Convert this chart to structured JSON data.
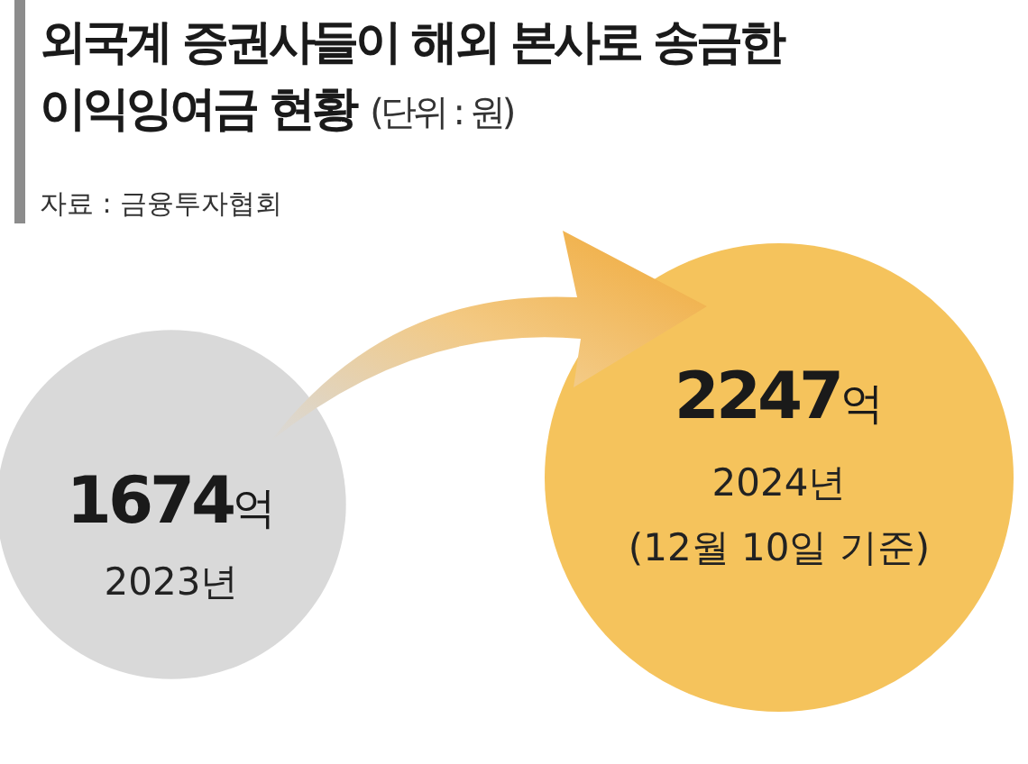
{
  "chart_data": {
    "type": "other",
    "title": "외국계 증권사들이 해외 본사로 송금한 이익잉여금 현황",
    "subtitle": "(단위 : 원)",
    "categories": [
      "2023년",
      "2024년"
    ],
    "values": [
      1674,
      2247
    ],
    "value_labels": [
      "1674억",
      "2247억"
    ],
    "colors": [
      "#d9d9d9",
      "#f5c35c"
    ],
    "annotations": [
      "자료 : 금융투자협회",
      {
        "text": "(12월 10일 기준)",
        "x": "2024년"
      }
    ]
  }
}
